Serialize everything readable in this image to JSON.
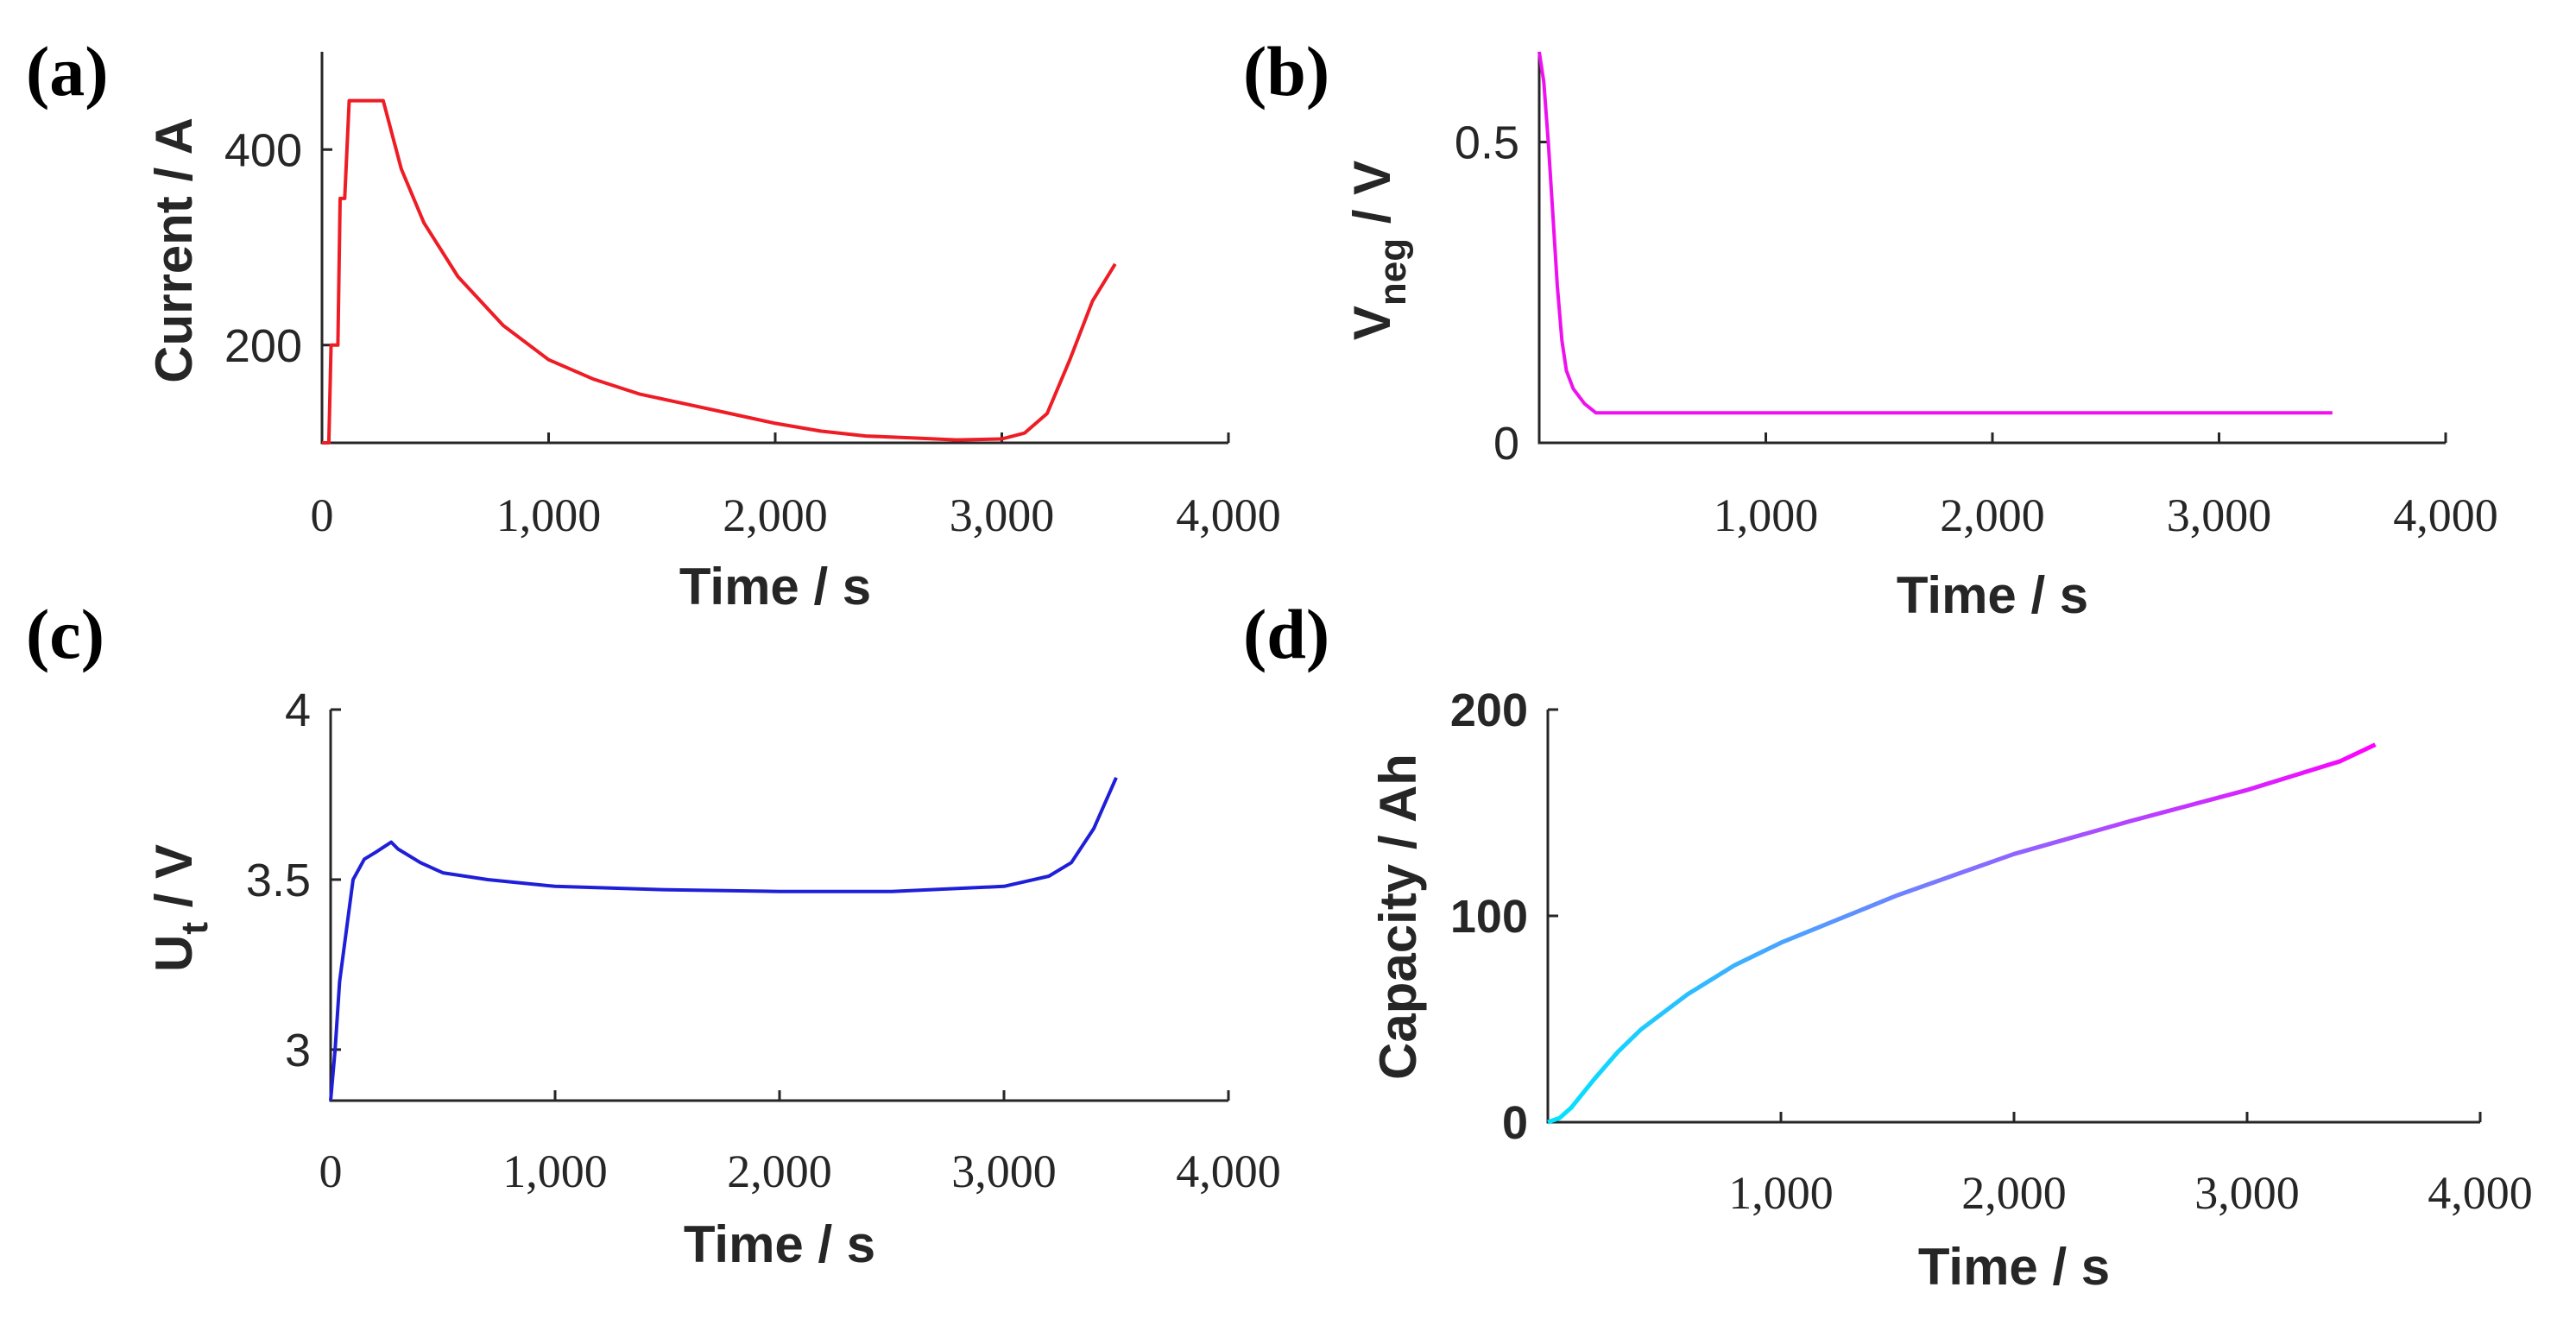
{
  "chart_data": [
    {
      "panel": "(a)",
      "type": "line",
      "xlabel": "Time / s",
      "ylabel": "Current / A",
      "xlim": [
        0,
        4000
      ],
      "ylim": [
        100,
        500
      ],
      "xticks": [
        0,
        1000,
        2000,
        3000,
        4000
      ],
      "xtick_labels": [
        "0",
        "1,000",
        "2,000",
        "3,000",
        "4,000"
      ],
      "yticks": [
        200,
        400
      ],
      "ytick_labels": [
        "200",
        "400"
      ],
      "color": "#ee1c25",
      "series": [
        {
          "name": "Current",
          "x": [
            0,
            30,
            40,
            70,
            80,
            100,
            120,
            150,
            200,
            270,
            350,
            450,
            600,
            800,
            1000,
            1200,
            1400,
            1600,
            1800,
            2000,
            2200,
            2400,
            2600,
            2800,
            3000,
            3100,
            3200,
            3300,
            3400,
            3500
          ],
          "y": [
            100,
            100,
            200,
            200,
            350,
            350,
            450,
            450,
            450,
            450,
            380,
            325,
            270,
            220,
            185,
            165,
            150,
            140,
            130,
            120,
            112,
            107,
            105,
            103,
            104,
            110,
            130,
            185,
            245,
            283
          ]
        }
      ]
    },
    {
      "panel": "(b)",
      "type": "line",
      "xlabel": "Time / s",
      "ylabel": "V",
      "ylabel_sub": "neg",
      "ylabel_rest": " / V",
      "xlim": [
        0,
        4000
      ],
      "ylim": [
        0,
        0.65
      ],
      "xticks": [
        1000,
        2000,
        3000,
        4000
      ],
      "xtick_labels": [
        "1,000",
        "2,000",
        "3,000",
        "4,000"
      ],
      "yticks": [
        0,
        0.5
      ],
      "ytick_labels": [
        "0",
        "0.5"
      ],
      "color": "#ee11ee",
      "series": [
        {
          "name": "V_neg",
          "x": [
            0,
            20,
            40,
            60,
            80,
            100,
            120,
            150,
            200,
            250,
            300,
            400,
            1000,
            2000,
            3000,
            3500
          ],
          "y": [
            0.65,
            0.6,
            0.5,
            0.38,
            0.26,
            0.17,
            0.12,
            0.09,
            0.065,
            0.05,
            0.05,
            0.05,
            0.05,
            0.05,
            0.05,
            0.05
          ]
        }
      ]
    },
    {
      "panel": "(c)",
      "type": "line",
      "xlabel": "Time / s",
      "ylabel": "U",
      "ylabel_sub": "t",
      "ylabel_rest": " / V",
      "xlim": [
        0,
        4000
      ],
      "ylim": [
        2.85,
        4.0
      ],
      "xticks": [
        0,
        1000,
        2000,
        3000,
        4000
      ],
      "xtick_labels": [
        "0",
        "1,000",
        "2,000",
        "3,000",
        "4,000"
      ],
      "yticks": [
        3,
        3.5,
        4
      ],
      "ytick_labels": [
        "3",
        "3.5",
        "4"
      ],
      "color": "#1f1fd8",
      "series": [
        {
          "name": "U_t",
          "x": [
            0,
            20,
            40,
            70,
            100,
            150,
            200,
            270,
            300,
            400,
            500,
            700,
            1000,
            1500,
            2000,
            2500,
            3000,
            3200,
            3300,
            3400,
            3500
          ],
          "y": [
            2.85,
            3.0,
            3.2,
            3.35,
            3.5,
            3.56,
            3.58,
            3.61,
            3.59,
            3.55,
            3.52,
            3.5,
            3.48,
            3.47,
            3.465,
            3.465,
            3.48,
            3.51,
            3.55,
            3.65,
            3.8
          ]
        }
      ]
    },
    {
      "panel": "(d)",
      "type": "line",
      "xlabel": "Time / s",
      "ylabel": "Capacity / Ah",
      "xlim": [
        0,
        4000
      ],
      "ylim": [
        0,
        200
      ],
      "xticks": [
        1000,
        2000,
        3000,
        4000
      ],
      "xtick_labels": [
        "1,000",
        "2,000",
        "3,000",
        "4,000"
      ],
      "yticks": [
        0,
        100,
        200
      ],
      "ytick_labels": [
        "0",
        "100",
        "200"
      ],
      "gradient": [
        "#00e5ff",
        "#ff00ff"
      ],
      "series": [
        {
          "name": "Capacity",
          "x": [
            0,
            50,
            100,
            200,
            300,
            400,
            600,
            800,
            1000,
            1500,
            2000,
            2500,
            3000,
            3200,
            3400,
            3550
          ],
          "y": [
            0,
            2,
            7,
            21,
            34,
            45,
            62,
            76,
            87,
            110,
            130,
            146,
            161,
            168,
            175,
            183
          ]
        }
      ]
    }
  ]
}
